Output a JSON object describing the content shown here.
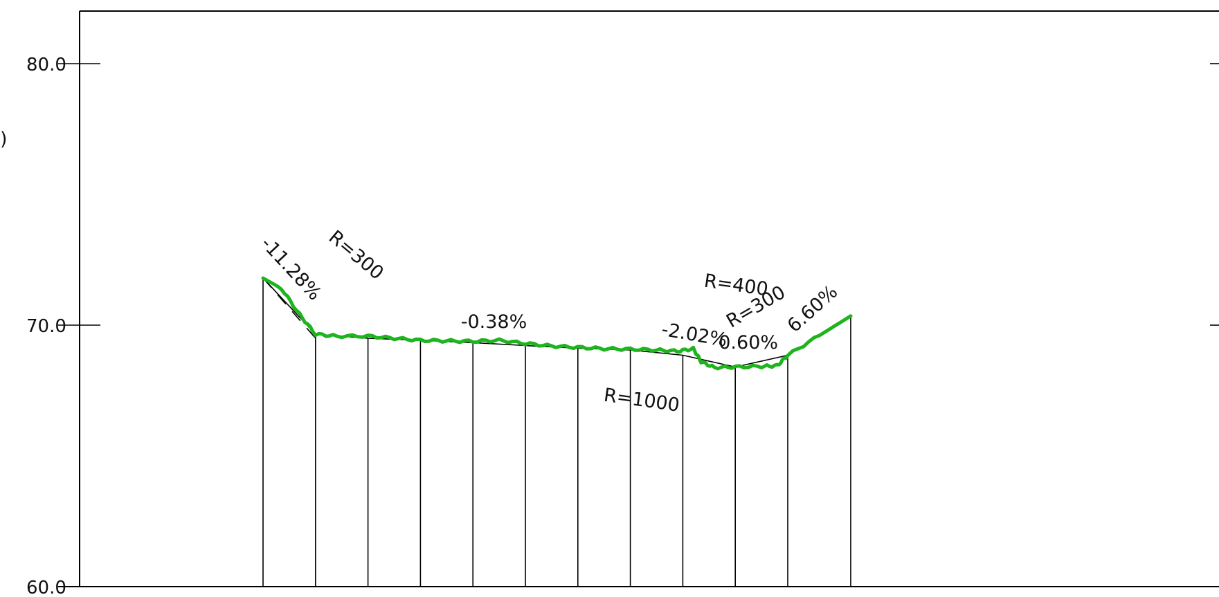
{
  "chart_data": {
    "type": "line",
    "title": "",
    "xlabel": "",
    "ylabel": ")",
    "ylim": [
      60.0,
      80.0
    ],
    "y_ticks": [
      "80.0",
      "70.0",
      "60.0"
    ],
    "grid": false,
    "design_profile": [
      {
        "x": 0,
        "y": 71.8
      },
      {
        "x": 1,
        "y": 69.65
      },
      {
        "x": 2,
        "y": 69.5
      },
      {
        "x": 3,
        "y": 69.42
      },
      {
        "x": 4,
        "y": 69.33
      },
      {
        "x": 5,
        "y": 69.22
      },
      {
        "x": 6,
        "y": 69.12
      },
      {
        "x": 7,
        "y": 69.05
      },
      {
        "x": 8,
        "y": 68.85
      },
      {
        "x": 9,
        "y": 68.4
      },
      {
        "x": 10,
        "y": 68.85
      },
      {
        "x": 11.2,
        "y": 70.35
      }
    ],
    "ground_profile": [
      {
        "x": 0,
        "y": 71.8
      },
      {
        "x": 0.35,
        "y": 71.4
      },
      {
        "x": 0.7,
        "y": 70.4
      },
      {
        "x": 1.0,
        "y": 69.65
      },
      {
        "x": 1.4,
        "y": 69.58
      },
      {
        "x": 2.0,
        "y": 69.58
      },
      {
        "x": 2.5,
        "y": 69.5
      },
      {
        "x": 3.0,
        "y": 69.42
      },
      {
        "x": 3.5,
        "y": 69.4
      },
      {
        "x": 4.0,
        "y": 69.38
      },
      {
        "x": 4.5,
        "y": 69.42
      },
      {
        "x": 5.0,
        "y": 69.3
      },
      {
        "x": 5.5,
        "y": 69.2
      },
      {
        "x": 6.0,
        "y": 69.15
      },
      {
        "x": 6.5,
        "y": 69.1
      },
      {
        "x": 7.0,
        "y": 69.08
      },
      {
        "x": 7.5,
        "y": 69.05
      },
      {
        "x": 7.9,
        "y": 69.0
      },
      {
        "x": 8.2,
        "y": 69.1
      },
      {
        "x": 8.35,
        "y": 68.6
      },
      {
        "x": 8.6,
        "y": 68.38
      },
      {
        "x": 9.0,
        "y": 68.4
      },
      {
        "x": 9.5,
        "y": 68.42
      },
      {
        "x": 9.8,
        "y": 68.45
      },
      {
        "x": 10.0,
        "y": 68.85
      },
      {
        "x": 10.6,
        "y": 69.6
      },
      {
        "x": 11.2,
        "y": 70.35
      }
    ],
    "tangent_segments": [
      {
        "from": {
          "x": 0,
          "y": 71.8
        },
        "to": {
          "x": 1,
          "y": 69.5
        }
      }
    ],
    "stations_x": [
      0,
      1,
      2,
      3,
      4,
      5,
      6,
      7,
      8,
      9,
      10,
      11.2
    ],
    "annotations": [
      {
        "text": "-11.28%",
        "x": 0.45,
        "y": 72.0,
        "angle": 47
      },
      {
        "text": "R=300",
        "x": 1.7,
        "y": 72.5,
        "angle": 40
      },
      {
        "text": "-0.38%",
        "x": 4.4,
        "y": 69.9,
        "angle": 0
      },
      {
        "text": "R=1000",
        "x": 7.2,
        "y": 66.9,
        "angle": 8
      },
      {
        "text": "-2.02%",
        "x": 8.2,
        "y": 69.4,
        "angle": 10
      },
      {
        "text": "0.60%",
        "x": 9.25,
        "y": 69.1,
        "angle": 0
      },
      {
        "text": "R=400",
        "x": 9.0,
        "y": 71.3,
        "angle": 8
      },
      {
        "text": "R=300",
        "x": 9.45,
        "y": 70.5,
        "angle": -30
      },
      {
        "text": "6.60%",
        "x": 10.55,
        "y": 70.45,
        "angle": -42
      }
    ]
  }
}
